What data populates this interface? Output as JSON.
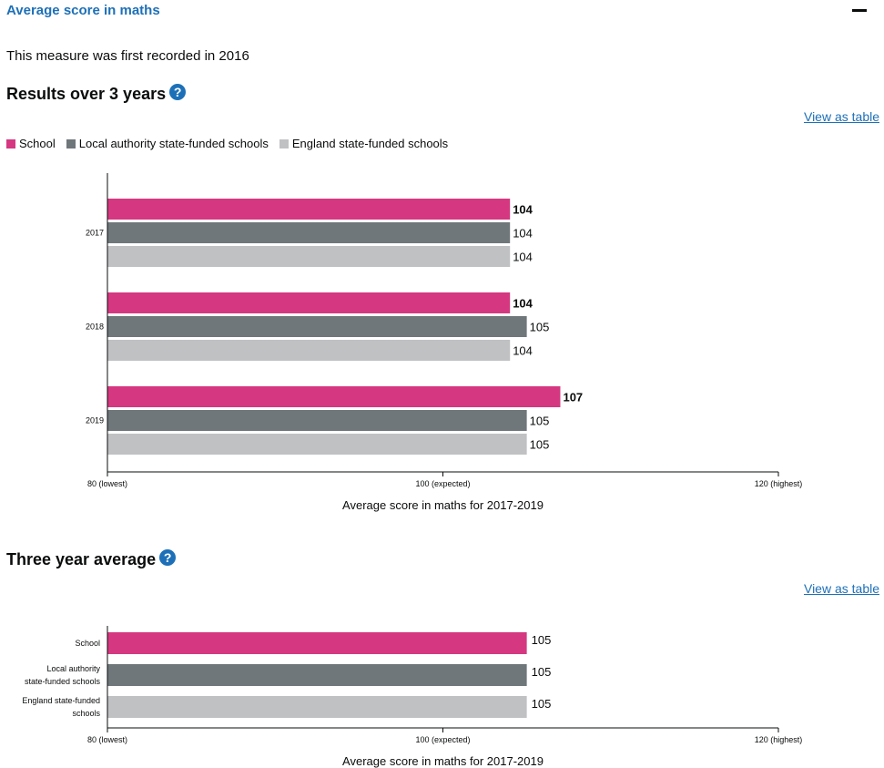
{
  "header": {
    "title": "Average score in maths"
  },
  "intro": "This measure was first recorded in 2016",
  "colors": {
    "school": "#d53880",
    "la": "#6f777b",
    "england": "#bfc1c3",
    "link": "#1d70b8"
  },
  "section1": {
    "heading": "Results over 3 years",
    "help_icon": "?",
    "view_table": "View as table"
  },
  "section2": {
    "heading": "Three year average",
    "help_icon": "?",
    "view_table": "View as table"
  },
  "legend": [
    {
      "label": "School",
      "color": "#d53880"
    },
    {
      "label": "Local authority state-funded schools",
      "color": "#6f777b"
    },
    {
      "label": "England state-funded schools",
      "color": "#bfc1c3"
    }
  ],
  "chart_data": [
    {
      "type": "bar",
      "orientation": "horizontal",
      "categories": [
        "2017",
        "2018",
        "2019"
      ],
      "series": [
        {
          "name": "School",
          "values": [
            104,
            104,
            107
          ],
          "color": "#d53880",
          "bold_labels": true
        },
        {
          "name": "Local authority state-funded schools",
          "values": [
            104,
            105,
            105
          ],
          "color": "#6f777b"
        },
        {
          "name": "England state-funded schools",
          "values": [
            104,
            104,
            105
          ],
          "color": "#bfc1c3"
        }
      ],
      "xlim": [
        80,
        120
      ],
      "ticks": [
        {
          "value": 80,
          "label": "80 (lowest)"
        },
        {
          "value": 100,
          "label": "100 (expected)"
        },
        {
          "value": 120,
          "label": "120 (highest)"
        }
      ],
      "xlabel": "Average score in maths for 2017-2019"
    },
    {
      "type": "bar",
      "orientation": "horizontal",
      "categories": [
        "School",
        "Local authority state-funded schools",
        "England state-funded schools"
      ],
      "category_lines": [
        [
          "School"
        ],
        [
          "Local authority",
          "state-funded schools"
        ],
        [
          "England state-funded",
          "schools"
        ]
      ],
      "values": [
        105,
        105,
        105
      ],
      "colors": [
        "#d53880",
        "#6f777b",
        "#bfc1c3"
      ],
      "xlim": [
        80,
        120
      ],
      "ticks": [
        {
          "value": 80,
          "label": "80 (lowest)"
        },
        {
          "value": 100,
          "label": "100 (expected)"
        },
        {
          "value": 120,
          "label": "120 (highest)"
        }
      ],
      "xlabel": "Average score in maths for 2017-2019"
    }
  ]
}
